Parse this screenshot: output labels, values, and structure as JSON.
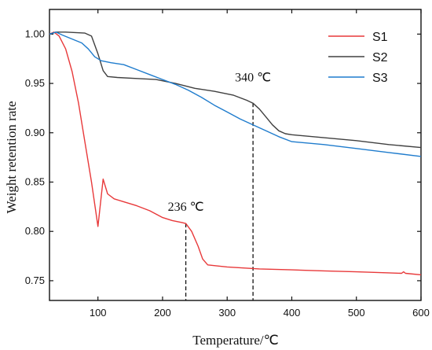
{
  "chart_data": {
    "type": "line",
    "xlabel": "Temperature/℃",
    "ylabel": "Weight retention rate",
    "xlim": [
      25,
      600
    ],
    "ylim": [
      0.73,
      1.025
    ],
    "x_ticks": [
      100,
      200,
      300,
      400,
      500,
      600
    ],
    "x_tick_labels": [
      "100",
      "200",
      "300",
      "400",
      "500",
      "600"
    ],
    "y_ticks": [
      0.75,
      0.8,
      0.85,
      0.9,
      0.95,
      1.0
    ],
    "y_tick_labels": [
      "0.75",
      "0.80",
      "0.85",
      "0.90",
      "0.95",
      "1.00"
    ],
    "grid": false,
    "legend_position": "top-right",
    "series": [
      {
        "name": "S1",
        "color": "#e8393a",
        "points": [
          [
            25,
            1.0
          ],
          [
            32,
            1.002
          ],
          [
            40,
            0.998
          ],
          [
            50,
            0.985
          ],
          [
            60,
            0.962
          ],
          [
            70,
            0.93
          ],
          [
            80,
            0.89
          ],
          [
            90,
            0.85
          ],
          [
            100,
            0.805
          ],
          [
            108,
            0.853
          ],
          [
            115,
            0.838
          ],
          [
            125,
            0.833
          ],
          [
            140,
            0.83
          ],
          [
            160,
            0.826
          ],
          [
            180,
            0.821
          ],
          [
            200,
            0.814
          ],
          [
            215,
            0.811
          ],
          [
            230,
            0.809
          ],
          [
            236,
            0.808
          ],
          [
            245,
            0.8
          ],
          [
            255,
            0.785
          ],
          [
            262,
            0.772
          ],
          [
            270,
            0.766
          ],
          [
            300,
            0.764
          ],
          [
            350,
            0.762
          ],
          [
            400,
            0.761
          ],
          [
            450,
            0.76
          ],
          [
            500,
            0.759
          ],
          [
            550,
            0.758
          ],
          [
            570,
            0.7575
          ],
          [
            573,
            0.759
          ],
          [
            576,
            0.7575
          ],
          [
            600,
            0.756
          ]
        ]
      },
      {
        "name": "S2",
        "color": "#404040",
        "points": [
          [
            25,
            1.0
          ],
          [
            35,
            1.002
          ],
          [
            50,
            1.002
          ],
          [
            80,
            1.001
          ],
          [
            90,
            0.998
          ],
          [
            100,
            0.98
          ],
          [
            108,
            0.963
          ],
          [
            115,
            0.957
          ],
          [
            130,
            0.956
          ],
          [
            160,
            0.955
          ],
          [
            190,
            0.954
          ],
          [
            220,
            0.95
          ],
          [
            250,
            0.945
          ],
          [
            280,
            0.942
          ],
          [
            310,
            0.938
          ],
          [
            330,
            0.933
          ],
          [
            340,
            0.93
          ],
          [
            350,
            0.924
          ],
          [
            360,
            0.916
          ],
          [
            370,
            0.908
          ],
          [
            380,
            0.902
          ],
          [
            390,
            0.899
          ],
          [
            400,
            0.898
          ],
          [
            450,
            0.895
          ],
          [
            500,
            0.892
          ],
          [
            550,
            0.888
          ],
          [
            600,
            0.885
          ]
        ]
      },
      {
        "name": "S3",
        "color": "#1f7ccd",
        "points": [
          [
            25,
            1.0
          ],
          [
            35,
            1.002
          ],
          [
            45,
            0.999
          ],
          [
            60,
            0.995
          ],
          [
            75,
            0.991
          ],
          [
            85,
            0.985
          ],
          [
            95,
            0.977
          ],
          [
            105,
            0.973
          ],
          [
            120,
            0.971
          ],
          [
            140,
            0.969
          ],
          [
            160,
            0.964
          ],
          [
            180,
            0.959
          ],
          [
            200,
            0.954
          ],
          [
            220,
            0.949
          ],
          [
            240,
            0.943
          ],
          [
            260,
            0.936
          ],
          [
            280,
            0.928
          ],
          [
            300,
            0.921
          ],
          [
            320,
            0.914
          ],
          [
            340,
            0.908
          ],
          [
            360,
            0.902
          ],
          [
            380,
            0.896
          ],
          [
            400,
            0.891
          ],
          [
            450,
            0.888
          ],
          [
            500,
            0.884
          ],
          [
            550,
            0.88
          ],
          [
            600,
            0.876
          ]
        ]
      }
    ],
    "annotations": [
      {
        "text": "340 ℃",
        "x": 340,
        "y": 0.93,
        "label_x": 340,
        "label_y": 0.952
      },
      {
        "text": "236 ℃",
        "x": 236,
        "y": 0.808,
        "label_x": 236,
        "label_y": 0.821
      }
    ]
  }
}
